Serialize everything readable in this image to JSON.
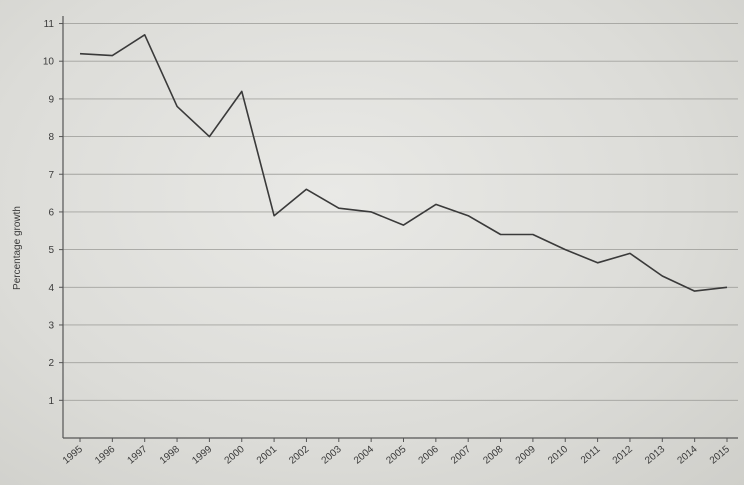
{
  "chart_data": {
    "type": "line",
    "title": "",
    "xlabel": "",
    "ylabel": "Percentage growth",
    "x": [
      "1995",
      "1996",
      "1997",
      "1998",
      "1999",
      "2000",
      "2001",
      "2002",
      "2003",
      "2004",
      "2005",
      "2006",
      "2007",
      "2008",
      "2009",
      "2010",
      "2011",
      "2012",
      "2013",
      "2014",
      "2015"
    ],
    "series": [
      {
        "values": [
          10.2,
          10.15,
          10.7,
          8.8,
          8.0,
          9.2,
          5.9,
          6.6,
          6.1,
          6.0,
          5.65,
          6.2,
          5.9,
          5.4,
          5.4,
          5.0,
          4.65,
          4.9,
          4.3,
          3.9,
          4.0
        ]
      }
    ],
    "yticks": [
      1,
      2,
      3,
      4,
      5,
      6,
      7,
      8,
      9,
      10,
      11
    ],
    "ylim": [
      0,
      11.2
    ],
    "grid": true,
    "legend": "none"
  }
}
